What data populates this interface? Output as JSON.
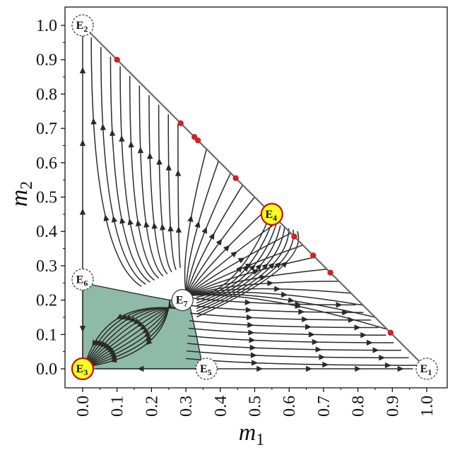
{
  "chart_data": {
    "type": "phase-portrait",
    "xlabel": "m",
    "xlabel_sub": "1",
    "ylabel": "m",
    "ylabel_sub": "2",
    "xlim": [
      -0.05,
      1.05
    ],
    "ylim": [
      -0.05,
      1.05
    ],
    "xticks": [
      "0.0",
      "0.1",
      "0.2",
      "0.3",
      "0.4",
      "0.5",
      "0.6",
      "0.7",
      "0.8",
      "0.9",
      "1.0"
    ],
    "yticks": [
      "0.0",
      "0.1",
      "0.2",
      "0.3",
      "0.4",
      "0.5",
      "0.6",
      "0.7",
      "0.8",
      "0.9",
      "1.0"
    ],
    "boundary_line": [
      [
        0,
        1
      ],
      [
        1,
        0
      ]
    ],
    "basin_region": [
      [
        0,
        0
      ],
      [
        0,
        0.25
      ],
      [
        0.2,
        0.21
      ],
      [
        0.31,
        0.19
      ],
      [
        0.33,
        0.1
      ],
      [
        0.35,
        0
      ]
    ],
    "basin_color": "#8fb9a8",
    "streamline_color": "#2a2a2a",
    "equilibria": [
      {
        "label": "E",
        "sub": "1",
        "x": 1.0,
        "y": 0.0,
        "type": "unstable"
      },
      {
        "label": "E",
        "sub": "2",
        "x": 0.0,
        "y": 1.0,
        "type": "unstable"
      },
      {
        "label": "E",
        "sub": "3",
        "x": 0.0,
        "y": 0.0,
        "type": "stable"
      },
      {
        "label": "E",
        "sub": "4",
        "x": 0.55,
        "y": 0.45,
        "type": "stable"
      },
      {
        "label": "E",
        "sub": "5",
        "x": 0.36,
        "y": 0.0,
        "type": "unstable"
      },
      {
        "label": "E",
        "sub": "6",
        "x": 0.0,
        "y": 0.26,
        "type": "unstable"
      },
      {
        "label": "E",
        "sub": "7",
        "x": 0.29,
        "y": 0.2,
        "type": "saddle"
      }
    ],
    "red_points": [
      {
        "x": 0.1,
        "y": 0.9
      },
      {
        "x": 0.285,
        "y": 0.715
      },
      {
        "x": 0.325,
        "y": 0.675
      },
      {
        "x": 0.335,
        "y": 0.665
      },
      {
        "x": 0.445,
        "y": 0.555
      },
      {
        "x": 0.615,
        "y": 0.385
      },
      {
        "x": 0.67,
        "y": 0.33
      },
      {
        "x": 0.72,
        "y": 0.28
      },
      {
        "x": 0.895,
        "y": 0.105
      }
    ],
    "colors": {
      "stable_fill": "#ffff22",
      "stable_edge": "#cc1111",
      "unstable_fill": "#ffffff",
      "red_point": "#d42020",
      "line": "#6a6a6a"
    }
  }
}
